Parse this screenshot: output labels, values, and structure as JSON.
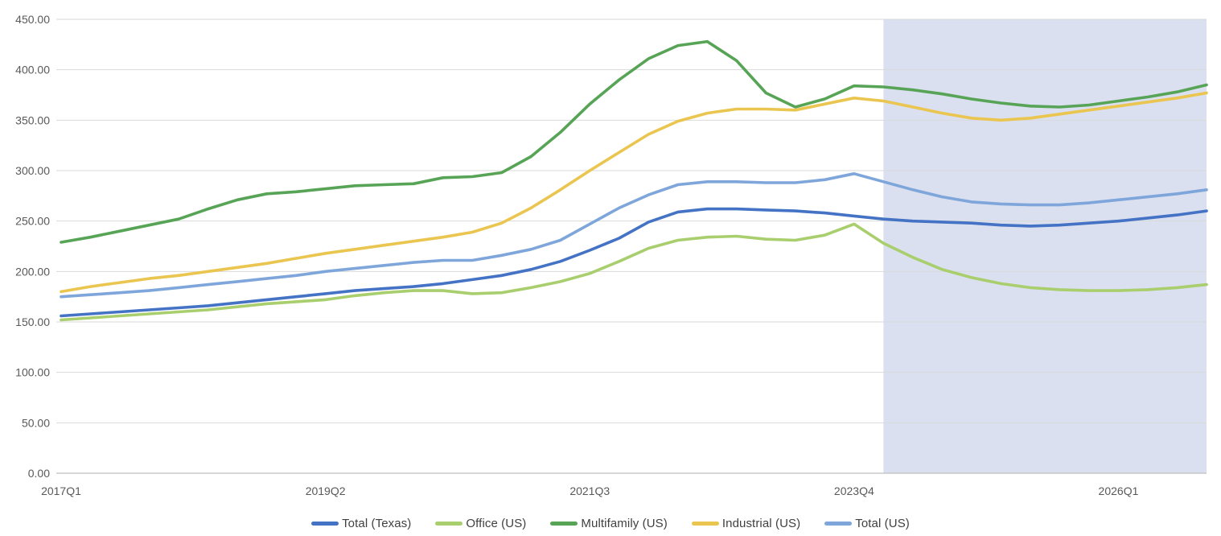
{
  "chart_data": {
    "type": "line",
    "title": "",
    "grid": "horizontal",
    "legend_position": "bottom",
    "plot_bg": "#ffffff",
    "gridline_color": "#d9d9d9",
    "axis_line_color": "#bfbfbf",
    "tick_text_color": "#595959",
    "y_axis": {
      "min": 0,
      "max": 450,
      "step": 50,
      "ticks": [
        "450.00",
        "400.00",
        "350.00",
        "300.00",
        "250.00",
        "200.00",
        "150.00",
        "100.00",
        "50.00",
        "0.00"
      ]
    },
    "x_axis": {
      "ticks": [
        "2017Q1",
        "2019Q2",
        "2021Q3",
        "2023Q4",
        "2026Q1"
      ]
    },
    "categories": [
      "2017Q1",
      "2017Q2",
      "2017Q3",
      "2017Q4",
      "2018Q1",
      "2018Q2",
      "2018Q3",
      "2018Q4",
      "2019Q1",
      "2019Q2",
      "2019Q3",
      "2019Q4",
      "2020Q1",
      "2020Q2",
      "2020Q3",
      "2020Q4",
      "2021Q1",
      "2021Q2",
      "2021Q3",
      "2021Q4",
      "2022Q1",
      "2022Q2",
      "2022Q3",
      "2022Q4",
      "2023Q1",
      "2023Q2",
      "2023Q3",
      "2023Q4",
      "2024Q1",
      "2024Q2",
      "2024Q3",
      "2024Q4",
      "2025Q1",
      "2025Q2",
      "2025Q3",
      "2025Q4",
      "2026Q1",
      "2026Q2",
      "2026Q3",
      "2026Q4"
    ],
    "forecast_band": {
      "start_category": "2024Q1",
      "end_category": "2026Q4",
      "color": "#dbe0f0"
    },
    "series": [
      {
        "name": "Total (Texas)",
        "color": "#4472c4",
        "values": [
          156,
          158,
          160,
          162,
          164,
          166,
          169,
          172,
          175,
          178,
          181,
          183,
          185,
          188,
          192,
          196,
          202,
          210,
          221,
          233,
          249,
          259,
          262,
          262,
          261,
          260,
          258,
          255,
          252,
          250,
          249,
          248,
          246,
          245,
          246,
          248,
          250,
          253,
          256,
          260
        ]
      },
      {
        "name": "Office (US)",
        "color": "#a9ce6d",
        "values": [
          152,
          154,
          156,
          158,
          160,
          162,
          165,
          168,
          170,
          172,
          176,
          179,
          181,
          181,
          178,
          179,
          184,
          190,
          198,
          210,
          223,
          231,
          234,
          235,
          232,
          231,
          236,
          247,
          228,
          214,
          202,
          194,
          188,
          184,
          182,
          181,
          181,
          182,
          184,
          187
        ]
      },
      {
        "name": "Multifamily (US)",
        "color": "#57a457",
        "values": [
          229,
          234,
          240,
          246,
          252,
          262,
          271,
          277,
          279,
          282,
          285,
          286,
          287,
          293,
          294,
          298,
          314,
          338,
          366,
          390,
          411,
          424,
          428,
          409,
          377,
          363,
          371,
          384,
          383,
          380,
          376,
          371,
          367,
          364,
          363,
          365,
          369,
          373,
          378,
          385
        ]
      },
      {
        "name": "Industrial (US)",
        "color": "#eac54f",
        "values": [
          180,
          185,
          189,
          193,
          196,
          200,
          204,
          208,
          213,
          218,
          222,
          226,
          230,
          234,
          239,
          248,
          263,
          281,
          300,
          318,
          336,
          349,
          357,
          361,
          361,
          360,
          366,
          372,
          369,
          363,
          357,
          352,
          350,
          352,
          356,
          360,
          364,
          368,
          372,
          377
        ]
      },
      {
        "name": "Total (US)",
        "color": "#7fa6da",
        "values": [
          175,
          177,
          179,
          181,
          184,
          187,
          190,
          193,
          196,
          200,
          203,
          206,
          209,
          211,
          211,
          216,
          222,
          231,
          247,
          263,
          276,
          286,
          289,
          289,
          288,
          288,
          291,
          297,
          289,
          281,
          274,
          269,
          267,
          266,
          266,
          268,
          271,
          274,
          277,
          281
        ]
      }
    ]
  }
}
